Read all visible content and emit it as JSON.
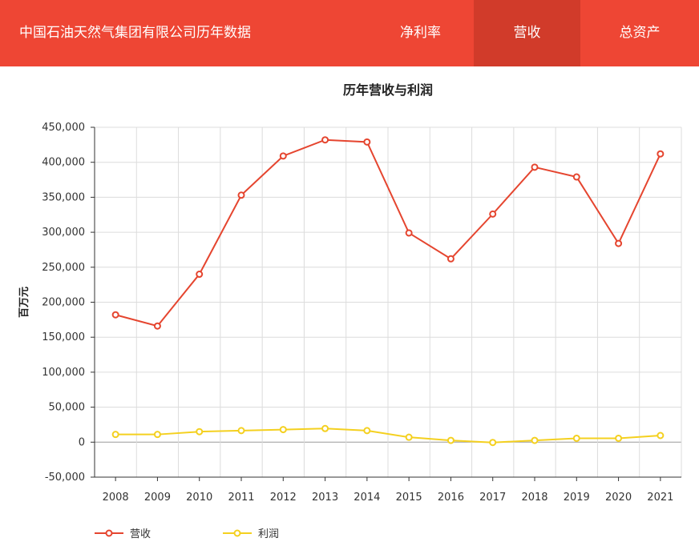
{
  "header": {
    "title": "中国石油天然气集团有限公司历年数据",
    "tabs": [
      {
        "label": "净利率",
        "active": false
      },
      {
        "label": "营收",
        "active": true
      },
      {
        "label": "总资产",
        "active": false
      }
    ]
  },
  "colors": {
    "header_bg": "#ee4634",
    "tab_active_bg": "#d13b2a",
    "revenue_line": "#e5452f",
    "profit_line": "#f4d01f"
  },
  "chart_data": {
    "type": "line",
    "title": "历年营收与利润",
    "xlabel": "",
    "ylabel": "百万元",
    "categories": [
      "2008",
      "2009",
      "2010",
      "2011",
      "2012",
      "2013",
      "2014",
      "2015",
      "2016",
      "2017",
      "2018",
      "2019",
      "2020",
      "2021"
    ],
    "ylim": [
      -50000,
      450000
    ],
    "yticks": [
      450000,
      400000,
      350000,
      300000,
      250000,
      200000,
      150000,
      100000,
      50000,
      0,
      -50000
    ],
    "ytick_labels": [
      "450,000",
      "400,000",
      "350,000",
      "300,000",
      "250,000",
      "200,000",
      "150,000",
      "100,000",
      "50,000",
      "0",
      "-50,000"
    ],
    "grid": true,
    "legend_position": "bottom-left",
    "series": [
      {
        "name": "营收",
        "color": "#e5452f",
        "values": [
          182000,
          166000,
          240000,
          353000,
          409000,
          432000,
          429000,
          299000,
          262000,
          326000,
          393000,
          379000,
          284000,
          412000
        ]
      },
      {
        "name": "利润",
        "color": "#f4d01f",
        "values": [
          11000,
          11000,
          15000,
          16500,
          18000,
          19500,
          16500,
          7000,
          2500,
          -500,
          2500,
          5500,
          5500,
          9500
        ]
      }
    ]
  }
}
